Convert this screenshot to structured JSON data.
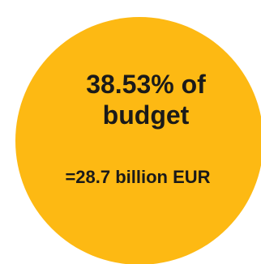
{
  "badge": {
    "line1": "38.53% of",
    "line2": "budget",
    "amount": "=28.7 billion EUR",
    "fill_color": "#FDB913",
    "text_color": "#1a1a1a",
    "shape": "circle"
  }
}
